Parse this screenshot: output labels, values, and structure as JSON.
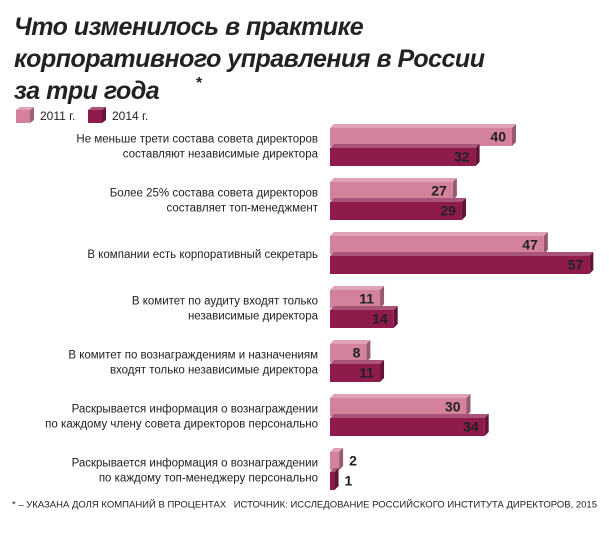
{
  "chart_data": {
    "type": "bar",
    "orientation": "horizontal",
    "title": "Что изменилось в практике\nкорпоративного управления в России\nза три года",
    "title_mark": "*",
    "categories": [
      "Не меньше трети состава совета директоров\nсоставляют независимые директора",
      "Более 25% состава совета директоров\nсоставляет топ-менеджмент",
      "В компании есть корпоративный секретарь",
      "В комитет по аудиту входят только\nнезависимые директора",
      "В комитет по вознаграждениям и назначениям\nвходят только независимые директора",
      "Раскрывается информация о вознаграждении\nпо каждому члену совета директоров персонально",
      "Раскрывается информация о вознаграждении\nпо каждому топ-менеджеру персонально"
    ],
    "series": [
      {
        "name": "2011 г.",
        "color": "#d4819e",
        "values": [
          40,
          27,
          47,
          11,
          8,
          30,
          2
        ]
      },
      {
        "name": "2014 г.",
        "color": "#8e1b4c",
        "values": [
          32,
          29,
          57,
          14,
          11,
          34,
          1
        ]
      }
    ],
    "footnote": "* – УКАЗАНА ДОЛЯ КОМПАНИЙ В ПРОЦЕНТАХ",
    "source": "ИСТОЧНИК: ИССЛЕДОВАНИЕ РОССИЙСКОГО ИНСТИТУТА ДИРЕКТОРОВ, 2015"
  }
}
